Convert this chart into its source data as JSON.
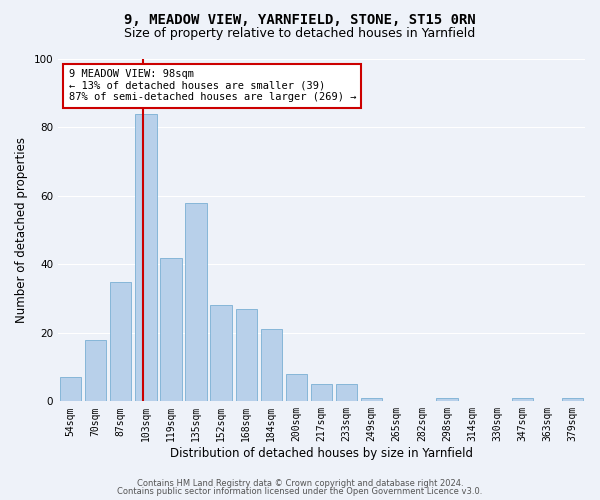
{
  "title_line1": "9, MEADOW VIEW, YARNFIELD, STONE, ST15 0RN",
  "title_line2": "Size of property relative to detached houses in Yarnfield",
  "xlabel": "Distribution of detached houses by size in Yarnfield",
  "ylabel": "Number of detached properties",
  "categories": [
    "54sqm",
    "70sqm",
    "87sqm",
    "103sqm",
    "119sqm",
    "135sqm",
    "152sqm",
    "168sqm",
    "184sqm",
    "200sqm",
    "217sqm",
    "233sqm",
    "249sqm",
    "265sqm",
    "282sqm",
    "298sqm",
    "314sqm",
    "330sqm",
    "347sqm",
    "363sqm",
    "379sqm"
  ],
  "values": [
    7,
    18,
    35,
    84,
    42,
    58,
    28,
    27,
    21,
    8,
    5,
    5,
    1,
    0,
    0,
    1,
    0,
    0,
    1,
    0,
    1
  ],
  "bar_color": "#b8d0ea",
  "bar_edge_color": "#7aafd4",
  "vline_x_index": 3,
  "vline_color": "#cc0000",
  "annotation_text": "9 MEADOW VIEW: 98sqm\n← 13% of detached houses are smaller (39)\n87% of semi-detached houses are larger (269) →",
  "annotation_box_color": "#ffffff",
  "annotation_box_edge_color": "#cc0000",
  "ylim": [
    0,
    100
  ],
  "background_color": "#eef2f9",
  "grid_color": "#ffffff",
  "footer_line1": "Contains HM Land Registry data © Crown copyright and database right 2024.",
  "footer_line2": "Contains public sector information licensed under the Open Government Licence v3.0.",
  "title_fontsize": 10,
  "subtitle_fontsize": 9,
  "tick_fontsize": 7,
  "ylabel_fontsize": 8.5,
  "xlabel_fontsize": 8.5,
  "annot_fontsize": 7.5
}
